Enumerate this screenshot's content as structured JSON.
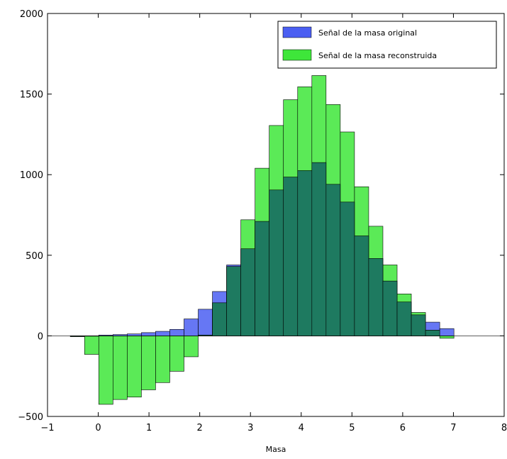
{
  "chart_data": {
    "type": "bar",
    "xlabel": "Masa",
    "ylabel": "",
    "xlim": [
      -1,
      8
    ],
    "ylim": [
      -500,
      2000
    ],
    "xticks": [
      -1,
      0,
      1,
      2,
      3,
      4,
      5,
      6,
      7,
      8
    ],
    "yticks": [
      -500,
      0,
      500,
      1000,
      1500,
      2000
    ],
    "bin_width": 0.28,
    "legend_position": "top-right",
    "grid": false,
    "series": [
      {
        "name": "Señal de la masa original",
        "color": "#4b5ff2",
        "x": [
          -0.55,
          -0.27,
          0.01,
          0.29,
          0.57,
          0.85,
          1.13,
          1.41,
          1.69,
          1.97,
          2.25,
          2.53,
          2.81,
          3.09,
          3.37,
          3.65,
          3.93,
          4.21,
          4.49,
          4.77,
          5.05,
          5.33,
          5.61,
          5.89,
          6.17,
          6.45,
          6.73
        ],
        "values": [
          -3,
          -2,
          5,
          8,
          12,
          20,
          28,
          40,
          105,
          165,
          275,
          440,
          540,
          710,
          905,
          985,
          1025,
          1075,
          940,
          830,
          620,
          480,
          340,
          210,
          130,
          85,
          45
        ]
      },
      {
        "name": "Señal de la masa reconstruida",
        "color": "#3ee63a",
        "x": [
          -0.55,
          -0.27,
          0.01,
          0.29,
          0.57,
          0.85,
          1.13,
          1.41,
          1.69,
          1.97,
          2.25,
          2.53,
          2.81,
          3.09,
          3.37,
          3.65,
          3.93,
          4.21,
          4.49,
          4.77,
          5.05,
          5.33,
          5.61,
          5.89,
          6.17,
          6.45,
          6.73
        ],
        "values": [
          -5,
          -115,
          -425,
          -395,
          -380,
          -335,
          -290,
          -220,
          -130,
          5,
          205,
          430,
          720,
          1040,
          1305,
          1465,
          1545,
          1615,
          1435,
          1265,
          925,
          680,
          440,
          260,
          145,
          35,
          -15
        ]
      }
    ]
  }
}
